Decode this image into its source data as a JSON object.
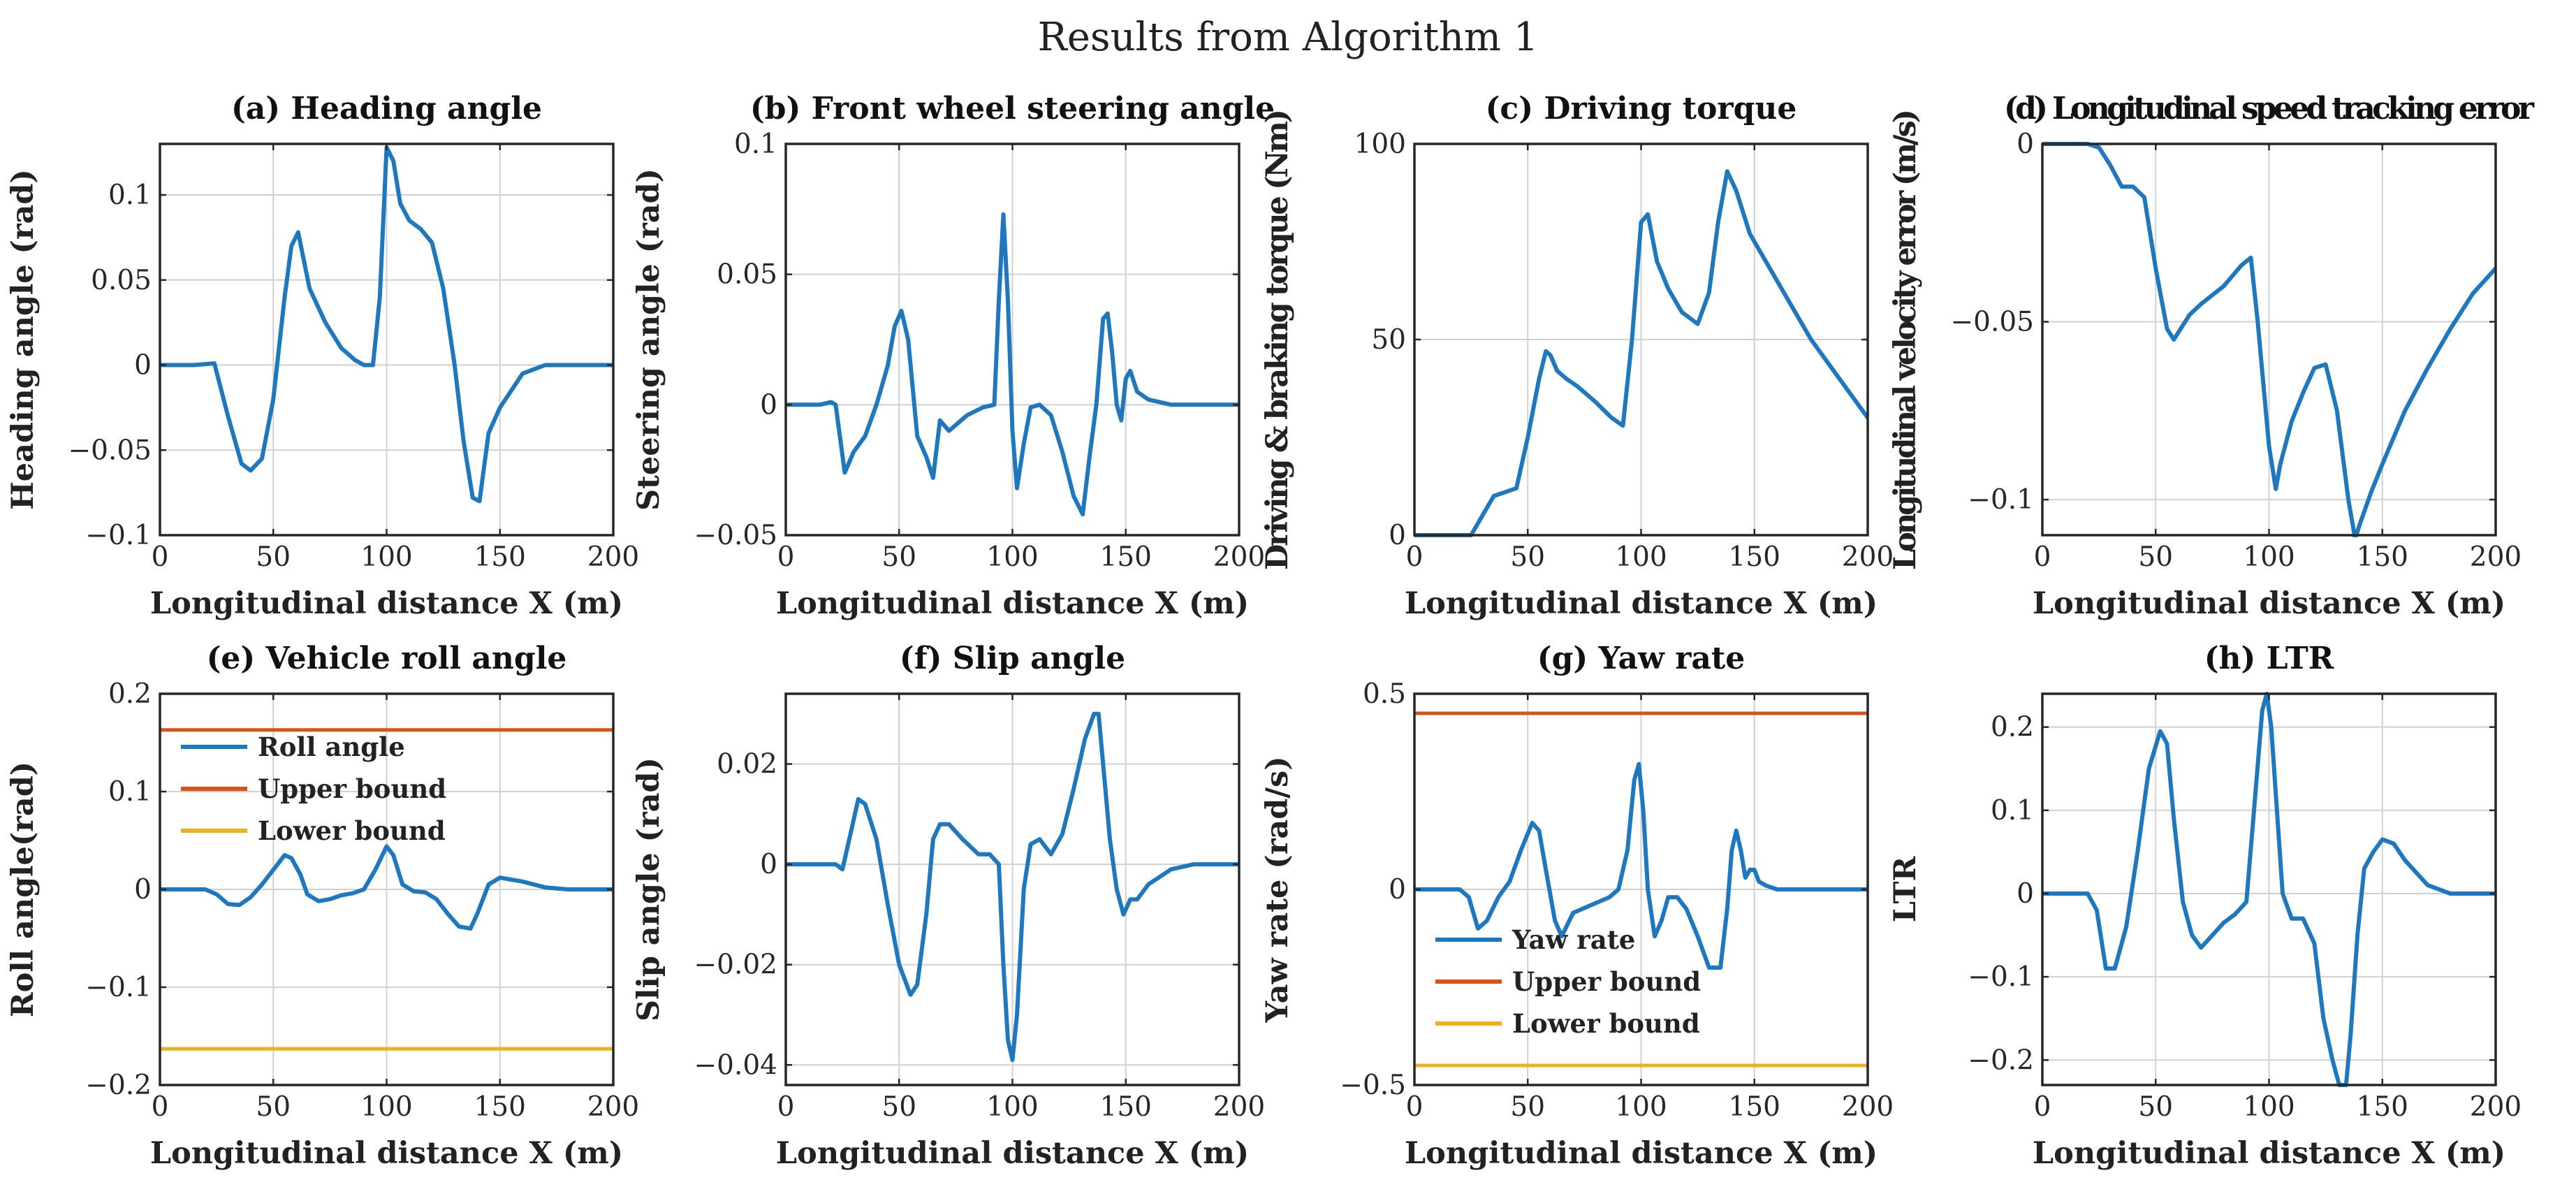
{
  "figure_title": "Results from Algorithm 1",
  "colors": {
    "series": "#1f77bd",
    "upper": "#d95319",
    "lower": "#edb120",
    "grid": "#d0d0d0",
    "axis": "#262626"
  },
  "chart_data": [
    {
      "id": "a",
      "type": "line",
      "title": "(a) Heading angle",
      "xlabel": "Longitudinal distance X (m)",
      "ylabel": "Heading angle (rad)",
      "xlim": [
        0,
        200
      ],
      "ylim": [
        -0.1,
        0.13
      ],
      "xticks": [
        0,
        50,
        100,
        150,
        200
      ],
      "yticks": [
        -0.1,
        -0.05,
        0,
        0.05,
        0.1
      ],
      "yticklabels": [
        "−0.1",
        "−0.05",
        "0",
        "0.05",
        "0.1"
      ],
      "series": [
        {
          "name": "Heading angle",
          "color": "#1f77bd",
          "x": [
            0,
            15,
            24,
            30,
            36,
            40,
            45,
            50,
            55,
            58,
            61,
            66,
            73,
            80,
            86,
            90,
            94,
            97,
            100,
            103,
            106,
            110,
            115,
            120,
            125,
            130,
            134,
            138,
            141,
            145,
            150,
            160,
            170,
            180,
            190,
            200
          ],
          "y": [
            0,
            0,
            0.001,
            -0.03,
            -0.058,
            -0.062,
            -0.055,
            -0.02,
            0.04,
            0.07,
            0.078,
            0.045,
            0.025,
            0.01,
            0.003,
            0.0,
            0.0,
            0.04,
            0.128,
            0.12,
            0.095,
            0.085,
            0.08,
            0.072,
            0.045,
            0.0,
            -0.045,
            -0.078,
            -0.08,
            -0.04,
            -0.025,
            -0.005,
            0.0,
            0.0,
            0.0,
            0.0
          ]
        }
      ]
    },
    {
      "id": "b",
      "type": "line",
      "title": "(b) Front wheel steering angle",
      "xlabel": "Longitudinal distance X (m)",
      "ylabel": "Steering angle (rad)",
      "xlim": [
        0,
        200
      ],
      "ylim": [
        -0.05,
        0.1
      ],
      "xticks": [
        0,
        50,
        100,
        150,
        200
      ],
      "yticks": [
        -0.05,
        0,
        0.05,
        0.1
      ],
      "yticklabels": [
        "−0.05",
        "0",
        "0.05",
        "0.1"
      ],
      "series": [
        {
          "name": "Steering angle",
          "color": "#1f77bd",
          "x": [
            0,
            15,
            20,
            22,
            26,
            30,
            35,
            40,
            45,
            48,
            51,
            54,
            58,
            62,
            65,
            68,
            72,
            80,
            87,
            92,
            94,
            96,
            98,
            100,
            102,
            105,
            108,
            112,
            117,
            122,
            127,
            131,
            134,
            137,
            140,
            142,
            144,
            146,
            148,
            150,
            152,
            155,
            160,
            170,
            180,
            200
          ],
          "y": [
            0,
            0,
            0.001,
            0.0,
            -0.026,
            -0.018,
            -0.012,
            0.0,
            0.015,
            0.03,
            0.036,
            0.025,
            -0.012,
            -0.02,
            -0.028,
            -0.006,
            -0.01,
            -0.004,
            -0.001,
            0.0,
            0.04,
            0.073,
            0.04,
            -0.01,
            -0.032,
            -0.015,
            -0.001,
            0.0,
            -0.004,
            -0.018,
            -0.035,
            -0.042,
            -0.02,
            0.0,
            0.033,
            0.035,
            0.02,
            0.0,
            -0.006,
            0.01,
            0.013,
            0.005,
            0.002,
            0.0,
            0.0,
            0.0
          ]
        }
      ]
    },
    {
      "id": "c",
      "type": "line",
      "title": "(c) Driving torque",
      "xlabel": "Longitudinal distance X (m)",
      "ylabel": "Driving & braking torque (Nm)",
      "xlim": [
        0,
        200
      ],
      "ylim": [
        0,
        100
      ],
      "xticks": [
        0,
        50,
        100,
        150,
        200
      ],
      "yticks": [
        0,
        50,
        100
      ],
      "yticklabels": [
        "0",
        "50",
        "100"
      ],
      "series": [
        {
          "name": "Driving torque",
          "color": "#1f77bd",
          "x": [
            0,
            25,
            30,
            35,
            40,
            45,
            50,
            55,
            58,
            60,
            63,
            67,
            72,
            80,
            87,
            92,
            96,
            100,
            103,
            107,
            112,
            118,
            125,
            130,
            134,
            138,
            142,
            148,
            155,
            165,
            175,
            185,
            195,
            200
          ],
          "y": [
            0,
            0,
            5,
            10,
            11,
            12,
            25,
            40,
            47,
            46,
            42,
            40,
            38,
            34,
            30,
            28,
            50,
            80,
            82,
            70,
            63,
            57,
            54,
            62,
            80,
            93,
            88,
            77,
            70,
            60,
            50,
            42,
            34,
            30
          ]
        }
      ]
    },
    {
      "id": "d",
      "type": "line",
      "title": "(d) Longitudinal speed tracking error",
      "xlabel": "Longitudinal distance X (m)",
      "ylabel": "Longitudinal velocity error (m/s)",
      "xlim": [
        0,
        200
      ],
      "ylim": [
        -0.11,
        0
      ],
      "xticks": [
        0,
        50,
        100,
        150,
        200
      ],
      "yticks": [
        -0.1,
        -0.05,
        0
      ],
      "yticklabels": [
        "−0.1",
        "−0.05",
        "0"
      ],
      "series": [
        {
          "name": "Velocity error",
          "color": "#1f77bd",
          "x": [
            0,
            20,
            25,
            30,
            35,
            40,
            45,
            50,
            55,
            58,
            60,
            65,
            70,
            80,
            88,
            92,
            95,
            100,
            103,
            105,
            110,
            115,
            120,
            125,
            130,
            135,
            138,
            140,
            145,
            150,
            160,
            170,
            180,
            190,
            200
          ],
          "y": [
            0,
            0,
            -0.001,
            -0.006,
            -0.012,
            -0.012,
            -0.015,
            -0.035,
            -0.052,
            -0.055,
            -0.053,
            -0.048,
            -0.045,
            -0.04,
            -0.034,
            -0.032,
            -0.05,
            -0.085,
            -0.097,
            -0.09,
            -0.078,
            -0.07,
            -0.063,
            -0.062,
            -0.075,
            -0.1,
            -0.111,
            -0.107,
            -0.098,
            -0.09,
            -0.075,
            -0.063,
            -0.052,
            -0.042,
            -0.035
          ]
        }
      ]
    },
    {
      "id": "e",
      "type": "line",
      "title": "(e) Vehicle roll angle",
      "xlabel": "Longitudinal distance X (m)",
      "ylabel": "Roll angle(rad)",
      "xlim": [
        0,
        200
      ],
      "ylim": [
        -0.2,
        0.2
      ],
      "xticks": [
        0,
        50,
        100,
        150,
        200
      ],
      "yticks": [
        -0.2,
        -0.1,
        0,
        0.1,
        0.2
      ],
      "yticklabels": [
        "−0.2",
        "−0.1",
        "0",
        "0.1",
        "0.2"
      ],
      "legend": {
        "placement": "top-left",
        "entries": [
          "Roll angle",
          "Upper bound",
          "Lower bound"
        ]
      },
      "series": [
        {
          "name": "Roll angle",
          "color": "#1f77bd",
          "x": [
            0,
            20,
            25,
            30,
            35,
            40,
            45,
            50,
            55,
            58,
            62,
            65,
            70,
            75,
            80,
            85,
            90,
            95,
            100,
            103,
            107,
            112,
            117,
            122,
            127,
            132,
            137,
            140,
            145,
            150,
            160,
            170,
            180,
            190,
            200
          ],
          "y": [
            0,
            0,
            -0.005,
            -0.015,
            -0.016,
            -0.008,
            0.005,
            0.02,
            0.035,
            0.032,
            0.015,
            -0.005,
            -0.012,
            -0.01,
            -0.006,
            -0.004,
            0.0,
            0.02,
            0.044,
            0.035,
            0.005,
            -0.002,
            -0.003,
            -0.01,
            -0.025,
            -0.038,
            -0.04,
            -0.025,
            0.005,
            0.012,
            0.008,
            0.002,
            0.0,
            0.0,
            0.0
          ]
        },
        {
          "name": "Upper bound",
          "color": "#d95319",
          "x": [
            0,
            200
          ],
          "y": [
            0.163,
            0.163
          ]
        },
        {
          "name": "Lower bound",
          "color": "#edb120",
          "x": [
            0,
            200
          ],
          "y": [
            -0.163,
            -0.163
          ]
        }
      ]
    },
    {
      "id": "f",
      "type": "line",
      "title": "(f) Slip angle",
      "xlabel": "Longitudinal distance X (m)",
      "ylabel": "Slip angle (rad)",
      "xlim": [
        0,
        200
      ],
      "ylim": [
        -0.044,
        0.034
      ],
      "xticks": [
        0,
        50,
        100,
        150,
        200
      ],
      "yticks": [
        -0.04,
        -0.02,
        0,
        0.02
      ],
      "yticklabels": [
        "−0.04",
        "−0.02",
        "0",
        "0.02"
      ],
      "series": [
        {
          "name": "Slip angle",
          "color": "#1f77bd",
          "x": [
            0,
            18,
            22,
            25,
            28,
            32,
            35,
            40,
            45,
            50,
            55,
            58,
            62,
            65,
            68,
            72,
            78,
            85,
            90,
            94,
            96,
            98,
            100,
            102,
            105,
            108,
            112,
            117,
            122,
            127,
            132,
            136,
            138,
            140,
            143,
            146,
            149,
            152,
            155,
            160,
            170,
            180,
            200
          ],
          "y": [
            0,
            0,
            0.0,
            -0.001,
            0.005,
            0.013,
            0.012,
            0.005,
            -0.008,
            -0.02,
            -0.026,
            -0.024,
            -0.01,
            0.005,
            0.008,
            0.008,
            0.005,
            0.002,
            0.002,
            0.0,
            -0.02,
            -0.035,
            -0.039,
            -0.03,
            -0.005,
            0.004,
            0.005,
            0.002,
            0.006,
            0.015,
            0.025,
            0.03,
            0.03,
            0.02,
            0.005,
            -0.005,
            -0.01,
            -0.007,
            -0.007,
            -0.004,
            -0.001,
            0.0,
            0.0
          ]
        }
      ]
    },
    {
      "id": "g",
      "type": "line",
      "title": "(g) Yaw rate",
      "xlabel": "Longitudinal distance X (m)",
      "ylabel": "Yaw rate (rad/s)",
      "xlim": [
        0,
        200
      ],
      "ylim": [
        -0.5,
        0.5
      ],
      "xticks": [
        0,
        50,
        100,
        150,
        200
      ],
      "yticks": [
        -0.5,
        0,
        0.5
      ],
      "yticklabels": [
        "−0.5",
        "0",
        "0.5"
      ],
      "legend": {
        "placement": "bottom-left",
        "entries": [
          "Yaw rate",
          "Upper bound",
          "Lower bound"
        ]
      },
      "series": [
        {
          "name": "Yaw rate",
          "color": "#1f77bd",
          "x": [
            0,
            20,
            24,
            28,
            32,
            37,
            42,
            47,
            52,
            55,
            58,
            62,
            65,
            70,
            78,
            86,
            90,
            94,
            97,
            99,
            101,
            103,
            106,
            109,
            112,
            116,
            120,
            125,
            130,
            135,
            138,
            140,
            142,
            144,
            146,
            148,
            150,
            152,
            155,
            160,
            170,
            180,
            200
          ],
          "y": [
            0,
            0,
            -0.02,
            -0.1,
            -0.08,
            -0.02,
            0.02,
            0.1,
            0.17,
            0.15,
            0.05,
            -0.08,
            -0.12,
            -0.06,
            -0.04,
            -0.02,
            0.0,
            0.1,
            0.28,
            0.32,
            0.2,
            0.0,
            -0.12,
            -0.08,
            -0.02,
            -0.02,
            -0.05,
            -0.12,
            -0.2,
            -0.2,
            -0.05,
            0.1,
            0.15,
            0.1,
            0.03,
            0.05,
            0.05,
            0.02,
            0.01,
            0.0,
            0.0,
            0.0,
            0.0
          ]
        },
        {
          "name": "Upper bound",
          "color": "#d95319",
          "x": [
            0,
            200
          ],
          "y": [
            0.45,
            0.45
          ]
        },
        {
          "name": "Lower bound",
          "color": "#edb120",
          "x": [
            0,
            200
          ],
          "y": [
            -0.45,
            -0.45
          ]
        }
      ]
    },
    {
      "id": "h",
      "type": "line",
      "title": "(h) LTR",
      "xlabel": "Longitudinal distance X (m)",
      "ylabel": "LTR",
      "xlim": [
        0,
        200
      ],
      "ylim": [
        -0.23,
        0.24
      ],
      "xticks": [
        0,
        50,
        100,
        150,
        200
      ],
      "yticks": [
        -0.2,
        -0.1,
        0,
        0.1,
        0.2
      ],
      "yticklabels": [
        "−0.2",
        "−0.1",
        "0",
        "0.1",
        "0.2"
      ],
      "series": [
        {
          "name": "LTR",
          "color": "#1f77bd",
          "x": [
            0,
            20,
            24,
            28,
            32,
            37,
            42,
            47,
            52,
            55,
            58,
            62,
            66,
            70,
            75,
            80,
            85,
            90,
            94,
            97,
            99,
            101,
            103,
            106,
            110,
            115,
            120,
            124,
            128,
            131,
            134,
            136,
            139,
            142,
            146,
            150,
            155,
            160,
            170,
            180,
            190,
            200
          ],
          "y": [
            0,
            0,
            -0.02,
            -0.09,
            -0.09,
            -0.04,
            0.05,
            0.15,
            0.195,
            0.18,
            0.09,
            -0.01,
            -0.05,
            -0.065,
            -0.05,
            -0.035,
            -0.025,
            -0.01,
            0.12,
            0.22,
            0.24,
            0.2,
            0.12,
            0.0,
            -0.03,
            -0.03,
            -0.06,
            -0.15,
            -0.2,
            -0.23,
            -0.23,
            -0.17,
            -0.05,
            0.03,
            0.05,
            0.065,
            0.06,
            0.04,
            0.01,
            0.0,
            0.0,
            0.0
          ]
        }
      ]
    }
  ]
}
